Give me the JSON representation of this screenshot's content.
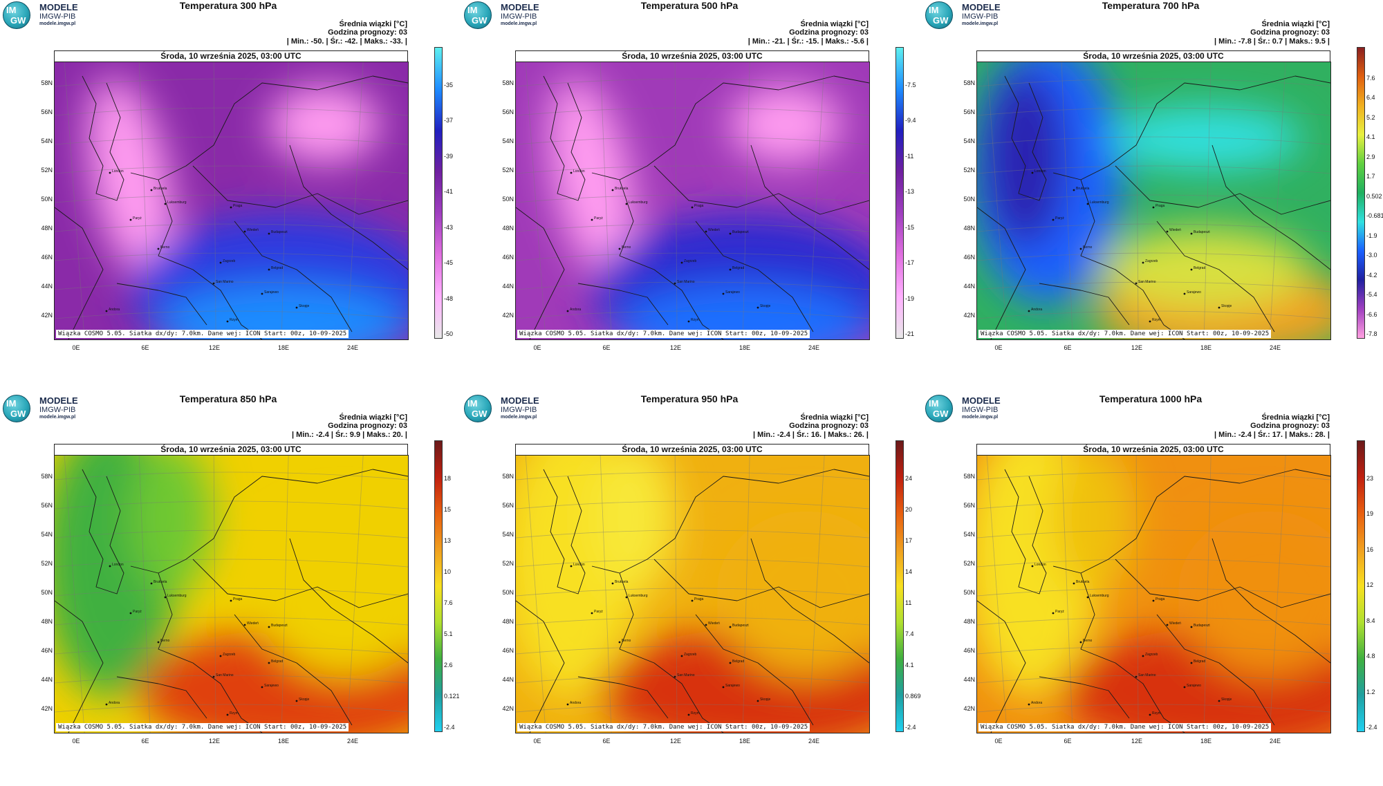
{
  "brand": {
    "line1": "MODELE",
    "line2": "IMGW-PIB",
    "line3": "modele.imgw.pl",
    "badge_top": "IM",
    "badge_bottom": "GW"
  },
  "common": {
    "legend_title": "Średnia wiązki [°C]",
    "forecast_hour": "Godzina prognozy: 03",
    "date": "Środa, 10 września 2025, 03:00 UTC",
    "footer": "Wiązka COSMO 5.05. Siatka dx/dy: 7.0km. Dane wej: ICON Start: 00z, 10-09-2025",
    "lat_labels": [
      "58N",
      "56N",
      "54N",
      "52N",
      "50N",
      "48N",
      "46N",
      "44N",
      "42N"
    ],
    "lon_labels": [
      "0E",
      "6E",
      "12E",
      "18E",
      "24E"
    ]
  },
  "panels": [
    {
      "title": "Temperatura 300 hPa",
      "stats": "| Min.:   -50. | Śr.:   -42. | Maks.:   -33. |",
      "scale_colors": [
        "#5ef0f0",
        "#1e8cff",
        "#2020c0",
        "#7020a0",
        "#a040c0",
        "#e070e0",
        "#ffb0ff",
        "#e8e8e8"
      ],
      "ticks": [
        "-35",
        "-37",
        "-39",
        "-41",
        "-43",
        "-45",
        "-48",
        "-50"
      ],
      "map_colors": {
        "base": "#8a2aa8",
        "warm": "#ff9cf0",
        "cold": "#2a3ae0",
        "cold2": "#1a8cff"
      }
    },
    {
      "title": "Temperatura 500 hPa",
      "stats": "| Min.:   -21. | Śr.:   -15. | Maks.:   -5.6 |",
      "scale_colors": [
        "#5ef0f0",
        "#1e8cff",
        "#2020c0",
        "#7020a0",
        "#a040c0",
        "#e070e0",
        "#ffb0ff",
        "#e8e8e8"
      ],
      "ticks": [
        "-7.5",
        "-9.4",
        "-11",
        "-13",
        "-15",
        "-17",
        "-19",
        "-21"
      ],
      "map_colors": {
        "base": "#a03ab8",
        "warm": "#ff9cf0",
        "cold": "#2a2ad0",
        "cold2": "#1a70ff"
      }
    },
    {
      "title": "Temperatura 700 hPa",
      "stats": "| Min.:   -7.8 | Śr.:   0.7 | Maks.:   9.5 |",
      "scale_colors": [
        "#8a2020",
        "#e06010",
        "#f0b020",
        "#e8f040",
        "#60d040",
        "#20b060",
        "#30e0e0",
        "#1a60ff",
        "#2020a0",
        "#a040c0",
        "#ffa0e0"
      ],
      "ticks": [
        "7.6",
        "6.4",
        "5.2",
        "4.1",
        "2.9",
        "1.7",
        "0.502",
        "-0.681",
        "-1.9",
        "-3.0",
        "-4.2",
        "-5.4",
        "-6.6",
        "-7.8"
      ],
      "map_colors": {
        "base": "#30b060",
        "warm": "#f0a020",
        "cold": "#1a60ff",
        "cold2": "#2a20b0"
      }
    },
    {
      "title": "Temperatura 850 hPa",
      "stats": "| Min.:   -2.4 | Śr.:   9.9 | Maks.:   20. |",
      "scale_colors": [
        "#6a1a1a",
        "#c02010",
        "#e86010",
        "#f0a020",
        "#f8e020",
        "#b0e030",
        "#40b040",
        "#20a0a0",
        "#20d0f0"
      ],
      "ticks": [
        "18",
        "15",
        "13",
        "10",
        "7.6",
        "5.1",
        "2.6",
        "0.121",
        "-2.4"
      ],
      "map_colors": {
        "base": "#f0d000",
        "warm": "#e04010",
        "cold": "#40b040",
        "cold2": "#70c830"
      }
    },
    {
      "title": "Temperatura 950 hPa",
      "stats": "| Min.:   -2.4 | Śr.:   16. | Maks.:   26. |",
      "scale_colors": [
        "#6a1a1a",
        "#c02010",
        "#e86010",
        "#f0a020",
        "#f8e020",
        "#b0e030",
        "#40b040",
        "#20a0a0",
        "#20d0f0"
      ],
      "ticks": [
        "24",
        "20",
        "17",
        "14",
        "11",
        "7.4",
        "4.1",
        "0.869",
        "-2.4"
      ],
      "map_colors": {
        "base": "#f0b010",
        "warm": "#d83010",
        "cold": "#f8e020",
        "cold2": "#f8e838"
      }
    },
    {
      "title": "Temperatura 1000 hPa",
      "stats": "| Min.:   -2.4 | Śr.:   17. | Maks.:   28. |",
      "scale_colors": [
        "#6a1a1a",
        "#c02010",
        "#e86010",
        "#f0a020",
        "#f8e020",
        "#b0e030",
        "#40b040",
        "#20a0a0",
        "#20d0f0"
      ],
      "ticks": [
        "23",
        "19",
        "16",
        "12",
        "8.4",
        "4.8",
        "1.2",
        "-2.4"
      ],
      "map_colors": {
        "base": "#f09010",
        "warm": "#d83010",
        "cold": "#f8e020",
        "cold2": "#f0c010"
      }
    }
  ],
  "cities": [
    "London",
    "Bruksela",
    "Paryż",
    "Luksemburg",
    "Praga",
    "Wiedeń",
    "Budapeszt",
    "Berno",
    "Zagrzeb",
    "Belgrad",
    "San Marino",
    "Sarajewo",
    "Skopje",
    "Rzym",
    "Andora"
  ]
}
